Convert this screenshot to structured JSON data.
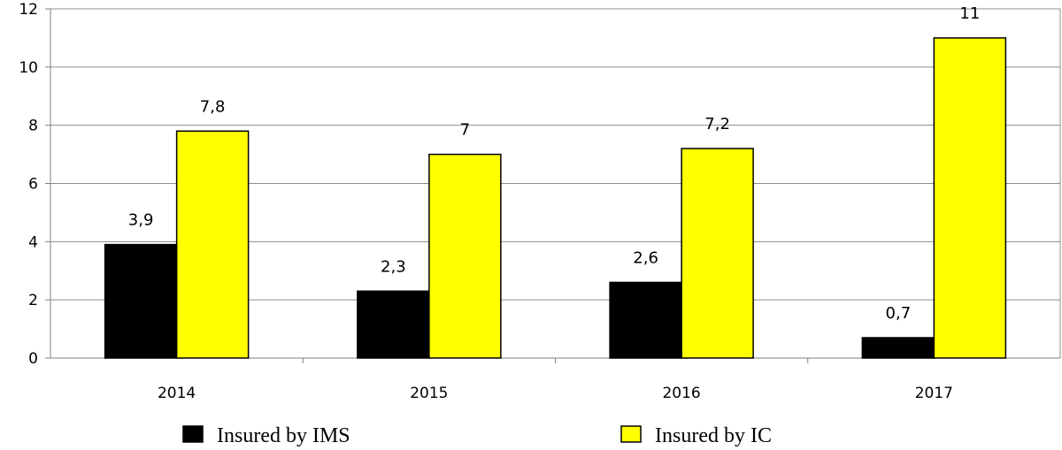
{
  "chart_data": {
    "type": "bar",
    "title": "",
    "xlabel": "",
    "ylabel": "",
    "categories": [
      "2014",
      "2015",
      "2016",
      "2017"
    ],
    "series": [
      {
        "name": "Insured by IMS",
        "color": "#000000",
        "values": [
          3.9,
          2.3,
          2.6,
          0.7
        ],
        "labels": [
          "3,9",
          "2,3",
          "2,6",
          "0,7"
        ]
      },
      {
        "name": "Insured by IC",
        "color": "#ffff00",
        "values": [
          7.8,
          7,
          7.2,
          11
        ],
        "labels": [
          "7,8",
          "7",
          "7,2",
          "11"
        ]
      }
    ],
    "ylim": [
      0,
      12
    ],
    "yticks": [
      "0",
      "2",
      "4",
      "6",
      "8",
      "10",
      "12"
    ],
    "grid": true,
    "legend": "bottom"
  }
}
